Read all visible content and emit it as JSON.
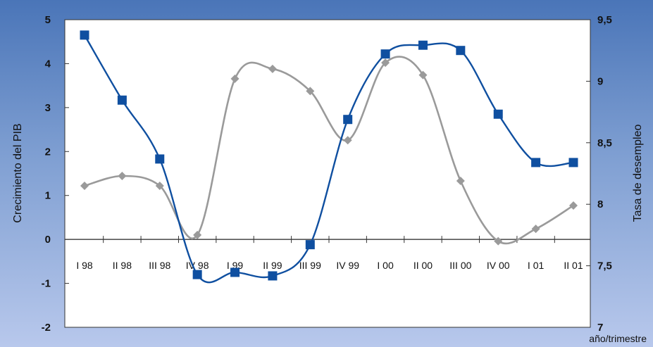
{
  "chart_data": {
    "type": "line",
    "title": "",
    "categories": [
      "I 98",
      "II 98",
      "III 98",
      "IV 98",
      "I 99",
      "II 99",
      "III 99",
      "IV 99",
      "I 00",
      "II 00",
      "III 00",
      "IV 00",
      "I 01",
      "II 01"
    ],
    "series": [
      {
        "axis": "left",
        "color": "#0f4fa0",
        "marker": "square",
        "values": [
          4.65,
          3.17,
          1.83,
          -0.8,
          -0.75,
          -0.83,
          -0.12,
          2.73,
          4.22,
          4.42,
          4.3,
          2.85,
          1.75,
          1.75
        ]
      },
      {
        "axis": "right",
        "color": "#9a9a9a",
        "marker": "diamond",
        "values": [
          8.15,
          8.23,
          8.15,
          7.75,
          9.02,
          9.1,
          8.92,
          8.52,
          9.15,
          9.05,
          8.19,
          7.7,
          7.8,
          7.99
        ]
      }
    ],
    "y_left": {
      "label": "Crecimiento del PIB",
      "ylim": [
        -2,
        5
      ],
      "ticks": [
        "5",
        "4",
        "3",
        "2",
        "1",
        "0",
        "-1",
        "-2"
      ]
    },
    "y_right": {
      "label": "Tasa de desempleo",
      "ylim": [
        7,
        9.5
      ],
      "ticks": [
        "9,5",
        "9",
        "8,5",
        "8",
        "7,5",
        "7"
      ]
    },
    "xlabel": "año/trimestre",
    "grid": false,
    "legend": "none"
  }
}
